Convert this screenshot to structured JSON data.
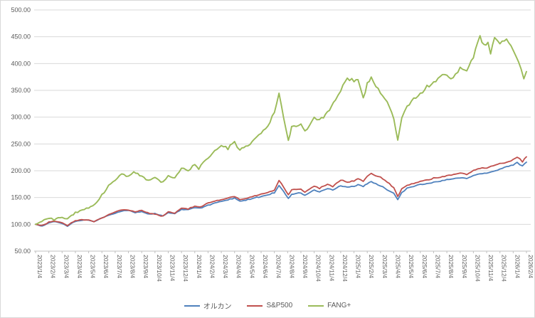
{
  "chart_data": {
    "type": "line",
    "title": "",
    "y_axis": {
      "min": 50,
      "max": 500,
      "step": 50,
      "tick_labels": [
        "50.00",
        "100.00",
        "150.00",
        "200.00",
        "250.00",
        "300.00",
        "350.00",
        "400.00",
        "450.00",
        "500.00"
      ]
    },
    "x_tick_labels": [
      "2023/1/4",
      "2023/2/4",
      "2023/3/4",
      "2023/4/4",
      "2023/5/4",
      "2023/6/4",
      "2023/7/4",
      "2023/8/4",
      "2023/9/4",
      "2023/10/4",
      "2023/11/4",
      "2023/12/4",
      "2024/1/4",
      "2024/2/4",
      "2024/3/4",
      "2024/4/4",
      "2024/5/4",
      "2024/6/4",
      "2024/7/4",
      "2024/8/4",
      "2024/9/4",
      "2024/10/4",
      "2024/11/4",
      "2024/12/4",
      "2025/1/4",
      "2025/2/4",
      "2025/3/4",
      "2025/4/4",
      "2025/5/4",
      "2025/6/4",
      "2025/7/4",
      "2025/8/4",
      "2025/9/4",
      "2025/10/4",
      "2025/11/4",
      "2025/12/4",
      "2026/1/4",
      "2026/2/4"
    ],
    "grid": "horizontal",
    "legend_position": "bottom",
    "series": [
      {
        "name": "オルカン",
        "color": "#4F81BD",
        "points": [
          [
            0,
            100
          ],
          [
            0.5,
            97
          ],
          [
            1,
            103
          ],
          [
            1.5,
            105
          ],
          [
            2,
            101
          ],
          [
            2.4,
            97
          ],
          [
            3,
            106
          ],
          [
            3.5,
            108
          ],
          [
            4,
            108
          ],
          [
            4.4,
            105
          ],
          [
            5,
            112
          ],
          [
            5.5,
            117
          ],
          [
            6,
            121
          ],
          [
            6.5,
            125
          ],
          [
            7,
            126
          ],
          [
            7.5,
            122
          ],
          [
            8,
            124
          ],
          [
            8.6,
            119
          ],
          [
            9,
            120
          ],
          [
            9.6,
            116
          ],
          [
            10,
            122
          ],
          [
            10.5,
            120
          ],
          [
            11,
            128
          ],
          [
            11.5,
            127
          ],
          [
            12,
            131
          ],
          [
            12.4,
            130
          ],
          [
            13,
            136
          ],
          [
            13.5,
            139
          ],
          [
            14,
            143
          ],
          [
            14.5,
            146
          ],
          [
            15,
            149
          ],
          [
            15.4,
            143
          ],
          [
            16,
            146
          ],
          [
            16.5,
            149
          ],
          [
            17,
            152
          ],
          [
            17.5,
            155
          ],
          [
            18,
            159
          ],
          [
            18.35,
            172
          ],
          [
            18.7,
            162
          ],
          [
            19.05,
            148
          ],
          [
            19.3,
            156
          ],
          [
            20,
            159
          ],
          [
            20.3,
            154
          ],
          [
            21,
            164
          ],
          [
            21.4,
            161
          ],
          [
            22,
            167
          ],
          [
            22.4,
            164
          ],
          [
            23,
            172
          ],
          [
            23.5,
            169
          ],
          [
            24,
            171
          ],
          [
            24.3,
            174
          ],
          [
            24.7,
            171
          ],
          [
            25,
            176
          ],
          [
            25.3,
            179
          ],
          [
            26,
            172
          ],
          [
            26.5,
            165
          ],
          [
            27,
            158
          ],
          [
            27.3,
            146
          ],
          [
            27.6,
            159
          ],
          [
            28,
            167
          ],
          [
            28.5,
            171
          ],
          [
            29,
            174
          ],
          [
            29.5,
            176
          ],
          [
            30,
            178
          ],
          [
            30.5,
            181
          ],
          [
            31,
            183
          ],
          [
            31.5,
            185
          ],
          [
            32,
            187
          ],
          [
            32.5,
            185
          ],
          [
            33,
            191
          ],
          [
            33.5,
            194
          ],
          [
            34,
            196
          ],
          [
            34.5,
            199
          ],
          [
            35,
            203
          ],
          [
            35.5,
            207
          ],
          [
            36,
            211
          ],
          [
            36.3,
            215
          ],
          [
            36.7,
            209
          ],
          [
            37,
            216
          ]
        ]
      },
      {
        "name": "S&P500",
        "color": "#C0504D",
        "points": [
          [
            0,
            100
          ],
          [
            0.5,
            98
          ],
          [
            1,
            104
          ],
          [
            1.5,
            106
          ],
          [
            2,
            103
          ],
          [
            2.4,
            98
          ],
          [
            3,
            107
          ],
          [
            3.5,
            109
          ],
          [
            4,
            108
          ],
          [
            4.4,
            105
          ],
          [
            5,
            112
          ],
          [
            5.5,
            118
          ],
          [
            6,
            123
          ],
          [
            6.5,
            127
          ],
          [
            7,
            127
          ],
          [
            7.5,
            123
          ],
          [
            8,
            126
          ],
          [
            8.6,
            120
          ],
          [
            9,
            119
          ],
          [
            9.6,
            115
          ],
          [
            10,
            123
          ],
          [
            10.5,
            121
          ],
          [
            11,
            130
          ],
          [
            11.5,
            129
          ],
          [
            12,
            134
          ],
          [
            12.4,
            132
          ],
          [
            13,
            140
          ],
          [
            13.5,
            143
          ],
          [
            14,
            146
          ],
          [
            14.5,
            149
          ],
          [
            15,
            152
          ],
          [
            15.4,
            146
          ],
          [
            16,
            149
          ],
          [
            16.5,
            153
          ],
          [
            17,
            156
          ],
          [
            17.5,
            159
          ],
          [
            18,
            164
          ],
          [
            18.35,
            182
          ],
          [
            18.7,
            169
          ],
          [
            19.05,
            155
          ],
          [
            19.3,
            164
          ],
          [
            20,
            166
          ],
          [
            20.3,
            160
          ],
          [
            21,
            171
          ],
          [
            21.4,
            167
          ],
          [
            22,
            175
          ],
          [
            22.4,
            171
          ],
          [
            23,
            183
          ],
          [
            23.5,
            179
          ],
          [
            24,
            181
          ],
          [
            24.3,
            186
          ],
          [
            24.7,
            181
          ],
          [
            25,
            190
          ],
          [
            25.3,
            195
          ],
          [
            26,
            188
          ],
          [
            26.5,
            179
          ],
          [
            27,
            168
          ],
          [
            27.3,
            152
          ],
          [
            27.6,
            166
          ],
          [
            28,
            173
          ],
          [
            28.5,
            177
          ],
          [
            29,
            180
          ],
          [
            29.5,
            183
          ],
          [
            30,
            186
          ],
          [
            30.5,
            188
          ],
          [
            31,
            191
          ],
          [
            31.5,
            193
          ],
          [
            32,
            196
          ],
          [
            32.5,
            194
          ],
          [
            33,
            200
          ],
          [
            33.5,
            204
          ],
          [
            34,
            206
          ],
          [
            34.5,
            209
          ],
          [
            35,
            213
          ],
          [
            35.5,
            216
          ],
          [
            36,
            221
          ],
          [
            36.3,
            226
          ],
          [
            36.7,
            217
          ],
          [
            37,
            226
          ]
        ]
      },
      {
        "name": "FANG+",
        "color": "#9BBB59",
        "points": [
          [
            0,
            100
          ],
          [
            0.3,
            104
          ],
          [
            1,
            112
          ],
          [
            1.4,
            109
          ],
          [
            2,
            114
          ],
          [
            2.4,
            110
          ],
          [
            3,
            122
          ],
          [
            3.5,
            127
          ],
          [
            4,
            130
          ],
          [
            4.6,
            140
          ],
          [
            5,
            155
          ],
          [
            5.5,
            172
          ],
          [
            6,
            183
          ],
          [
            6.5,
            193
          ],
          [
            7,
            190
          ],
          [
            7.4,
            196
          ],
          [
            8,
            190
          ],
          [
            8.5,
            181
          ],
          [
            9,
            186
          ],
          [
            9.6,
            178
          ],
          [
            10,
            190
          ],
          [
            10.5,
            187
          ],
          [
            11,
            204
          ],
          [
            11.5,
            201
          ],
          [
            12,
            212
          ],
          [
            12.3,
            205
          ],
          [
            13,
            224
          ],
          [
            13.5,
            237
          ],
          [
            14,
            248
          ],
          [
            14.5,
            242
          ],
          [
            15,
            254
          ],
          [
            15.4,
            238
          ],
          [
            16,
            246
          ],
          [
            16.5,
            260
          ],
          [
            17,
            270
          ],
          [
            17.5,
            283
          ],
          [
            18,
            310
          ],
          [
            18.35,
            345
          ],
          [
            18.7,
            298
          ],
          [
            19.05,
            257
          ],
          [
            19.3,
            280
          ],
          [
            20,
            286
          ],
          [
            20.3,
            272
          ],
          [
            21,
            300
          ],
          [
            21.4,
            293
          ],
          [
            22,
            308
          ],
          [
            22.6,
            333
          ],
          [
            23,
            350
          ],
          [
            23.5,
            372
          ],
          [
            24,
            368
          ],
          [
            24.3,
            373
          ],
          [
            24.7,
            336
          ],
          [
            25,
            363
          ],
          [
            25.3,
            372
          ],
          [
            26,
            345
          ],
          [
            26.5,
            328
          ],
          [
            27,
            300
          ],
          [
            27.3,
            256
          ],
          [
            27.6,
            298
          ],
          [
            28,
            320
          ],
          [
            28.5,
            334
          ],
          [
            29,
            345
          ],
          [
            29.5,
            356
          ],
          [
            30,
            365
          ],
          [
            30.5,
            376
          ],
          [
            31,
            380
          ],
          [
            31.3,
            371
          ],
          [
            32,
            391
          ],
          [
            32.5,
            386
          ],
          [
            33,
            414
          ],
          [
            33.5,
            450
          ],
          [
            33.8,
            433
          ],
          [
            34.1,
            440
          ],
          [
            34.3,
            421
          ],
          [
            34.6,
            446
          ],
          [
            35,
            440
          ],
          [
            35.5,
            444
          ],
          [
            36,
            424
          ],
          [
            36.4,
            400
          ],
          [
            36.8,
            373
          ],
          [
            37,
            385
          ]
        ]
      }
    ]
  },
  "legend": {
    "items": [
      {
        "label": "オルカン"
      },
      {
        "label": "S&P500"
      },
      {
        "label": "FANG+"
      }
    ]
  }
}
